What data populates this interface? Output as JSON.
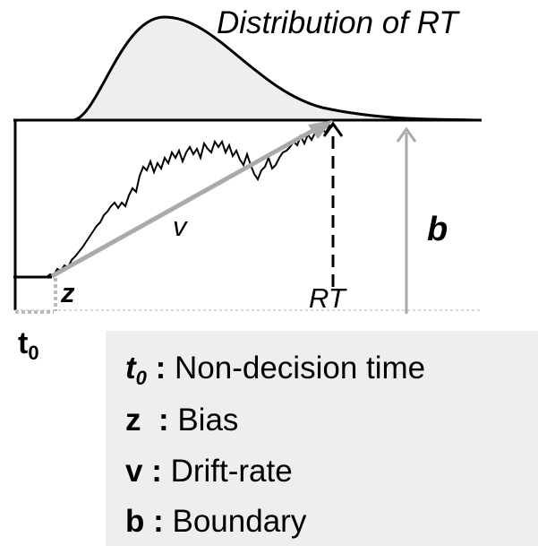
{
  "title": "Distribution of RT",
  "labels": {
    "drift": "v",
    "bias": "z",
    "rt": "RT",
    "boundary": "b",
    "t0_main": "t",
    "t0_sub": "0"
  },
  "legend": [
    {
      "symbol": "t",
      "sub": "0",
      "sep": " : ",
      "text": "Non-decision time"
    },
    {
      "symbol": "z",
      "sep": "  : ",
      "text": "Bias"
    },
    {
      "symbol": "v",
      "sep": " : ",
      "text": "Drift-rate"
    },
    {
      "symbol": "b",
      "sep": " : ",
      "text": "Boundary"
    }
  ],
  "colors": {
    "curve_fill": "#eeeeee",
    "arrow_gray": "#aaaaaa",
    "legend_bg": "#eeeeee",
    "dotted": "#bbbbbb"
  }
}
